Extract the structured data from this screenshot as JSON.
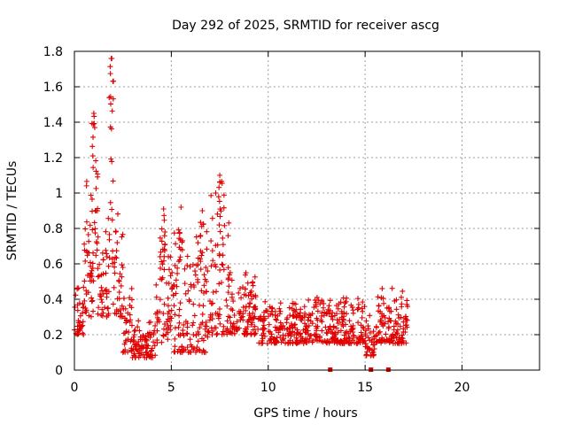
{
  "chart_data": {
    "type": "scatter",
    "title": "Day 292 of 2025, SRMTID for receiver ascg",
    "xlabel": "GPS time / hours",
    "ylabel": "SRMTID / TECUs",
    "xlim": [
      0,
      24
    ],
    "ylim": [
      0,
      1.8
    ],
    "xticks": [
      0,
      5,
      10,
      15,
      20
    ],
    "xtick_labels": [
      "0",
      "5",
      "10",
      "15",
      "20"
    ],
    "yticks": [
      0,
      0.2,
      0.4,
      0.6,
      0.8,
      1.0,
      1.2,
      1.4,
      1.6,
      1.8
    ],
    "ytick_labels": [
      "0",
      "0.2",
      "0.4",
      "0.6",
      "0.8",
      "1",
      "1.2",
      "1.4",
      "1.6",
      "1.8"
    ],
    "grid": true,
    "series_color": "#e00000",
    "marker": "plus",
    "series": [
      {
        "name": "SRMTID",
        "envelope": [
          {
            "x": [
              0.0,
              0.5
            ],
            "y": [
              0.2,
              0.55
            ]
          },
          {
            "x": [
              0.5,
              1.0
            ],
            "y": [
              0.3,
              1.2
            ]
          },
          {
            "x": [
              0.8,
              1.2
            ],
            "y": [
              0.5,
              1.45
            ]
          },
          {
            "x": [
              1.2,
              1.8
            ],
            "y": [
              0.3,
              0.9
            ]
          },
          {
            "x": [
              1.8,
              2.0
            ],
            "y": [
              0.6,
              1.76
            ]
          },
          {
            "x": [
              2.0,
              2.5
            ],
            "y": [
              0.3,
              0.9
            ]
          },
          {
            "x": [
              2.5,
              3.0
            ],
            "y": [
              0.1,
              0.6
            ]
          },
          {
            "x": [
              3.0,
              4.2
            ],
            "y": [
              0.07,
              0.3
            ]
          },
          {
            "x": [
              4.2,
              5.0
            ],
            "y": [
              0.15,
              0.9
            ]
          },
          {
            "x": [
              5.0,
              6.0
            ],
            "y": [
              0.1,
              0.9
            ]
          },
          {
            "x": [
              6.0,
              7.0
            ],
            "y": [
              0.1,
              0.9
            ]
          },
          {
            "x": [
              7.0,
              8.0
            ],
            "y": [
              0.2,
              1.1
            ]
          },
          {
            "x": [
              8.0,
              9.5
            ],
            "y": [
              0.2,
              0.6
            ]
          },
          {
            "x": [
              9.5,
              12.0
            ],
            "y": [
              0.15,
              0.4
            ]
          },
          {
            "x": [
              12.0,
              15.0
            ],
            "y": [
              0.15,
              0.45
            ]
          },
          {
            "x": [
              15.0,
              15.5
            ],
            "y": [
              0.08,
              0.35
            ]
          },
          {
            "x": [
              15.5,
              17.2
            ],
            "y": [
              0.15,
              0.48
            ]
          }
        ],
        "peaks": [
          {
            "x": 1.0,
            "y": 1.45
          },
          {
            "x": 1.9,
            "y": 1.76
          },
          {
            "x": 4.6,
            "y": 0.91
          },
          {
            "x": 5.5,
            "y": 0.92
          },
          {
            "x": 6.6,
            "y": 0.9
          },
          {
            "x": 7.5,
            "y": 1.1
          }
        ],
        "zero_markers_x": [
          13.2,
          15.3,
          16.2
        ]
      }
    ]
  }
}
